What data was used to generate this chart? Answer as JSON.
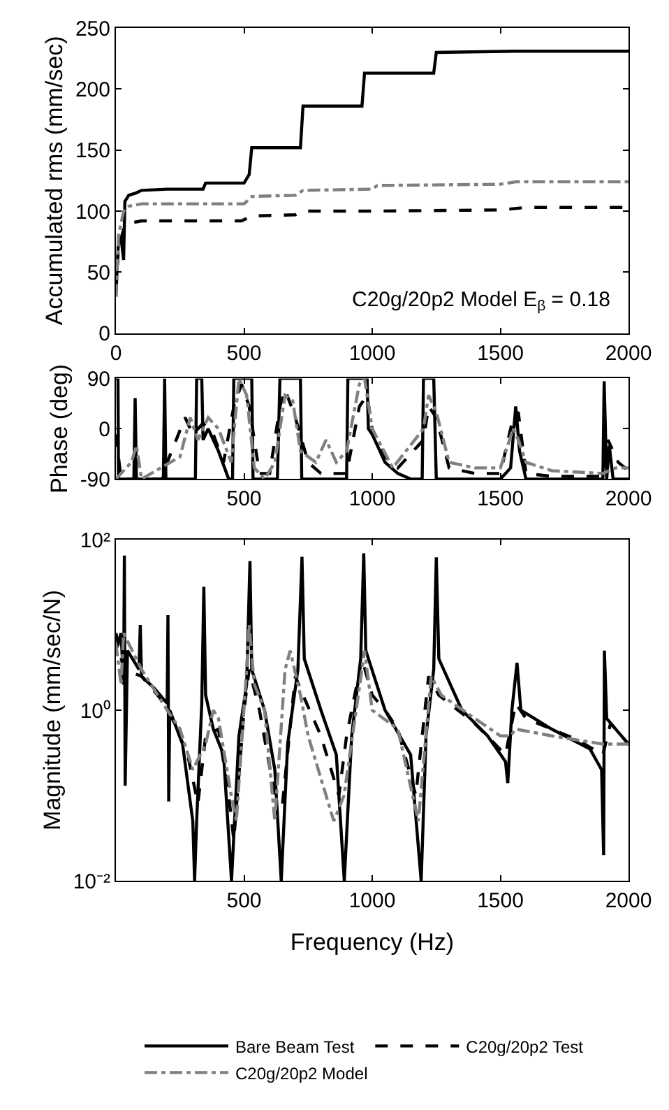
{
  "chart_data": [
    {
      "type": "line",
      "ylabel": "Accumulated rms (mm/sec)",
      "xlim": [
        0,
        2000
      ],
      "xticks": [
        0,
        500,
        1000,
        1500,
        2000
      ],
      "ylim": [
        0,
        250
      ],
      "yticks": [
        0,
        50,
        100,
        150,
        200,
        250
      ],
      "legend": false,
      "annotations": [
        "C20g/20p2 Model E$_{β}$ = 0.18"
      ],
      "series": [
        {
          "color": "#000000",
          "line_style": "solid",
          "x": [
            0,
            5,
            10,
            20,
            30,
            35,
            50,
            80,
            100,
            200,
            340,
            350,
            500,
            520,
            530,
            720,
            730,
            960,
            970,
            1240,
            1250,
            1560,
            2000
          ],
          "values": [
            30,
            55,
            75,
            78,
            60,
            108,
            113,
            115,
            117,
            118,
            118,
            123,
            123,
            130,
            152,
            152,
            186,
            186,
            213,
            213,
            230,
            231,
            231
          ]
        },
        {
          "color": "#000000",
          "line_style": "dashed",
          "x": [
            0,
            10,
            30,
            50,
            100,
            490,
            530,
            700,
            730,
            1000,
            1500,
            1600,
            2000
          ],
          "values": [
            35,
            70,
            85,
            90,
            92,
            92,
            96,
            97,
            100,
            100,
            101,
            103,
            103
          ]
        },
        {
          "color": "#808080",
          "line_style": "dashdot",
          "x": [
            0,
            10,
            30,
            50,
            100,
            500,
            530,
            700,
            730,
            1000,
            1020,
            1500,
            1560,
            2000
          ],
          "values": [
            30,
            80,
            100,
            104,
            106,
            106,
            112,
            113,
            117,
            118,
            121,
            122,
            124,
            124
          ]
        }
      ]
    },
    {
      "type": "line",
      "ylabel": "Phase (deg)",
      "xlim": [
        0,
        2000
      ],
      "xticks": [
        500,
        1000,
        1500,
        2000
      ],
      "ylim": [
        -90,
        90
      ],
      "yticks": [
        -90,
        0,
        90
      ],
      "legend": false,
      "series": [
        {
          "color": "#000000",
          "line_style": "solid",
          "x": [
            0,
            8,
            10,
            70,
            75,
            80,
            185,
            190,
            195,
            310,
            315,
            335,
            340,
            360,
            400,
            440,
            455,
            460,
            530,
            535,
            630,
            640,
            720,
            725,
            900,
            905,
            980,
            985,
            1000,
            1050,
            1100,
            1150,
            1195,
            1200,
            1240,
            1250,
            1500,
            1540,
            1560,
            1575,
            1600,
            1900,
            1905,
            1915,
            1925,
            1940,
            2000
          ],
          "values": [
            90,
            90,
            -90,
            -90,
            55,
            -90,
            -90,
            90,
            -90,
            -90,
            90,
            90,
            -20,
            0,
            -40,
            -90,
            -90,
            90,
            90,
            -90,
            -90,
            90,
            90,
            -90,
            -90,
            90,
            90,
            0,
            -10,
            -60,
            -80,
            -90,
            -90,
            90,
            90,
            -90,
            -90,
            -70,
            40,
            -40,
            -90,
            -90,
            85,
            -90,
            -30,
            -90,
            -90
          ]
        },
        {
          "color": "#000000",
          "line_style": "dashed",
          "x": [
            0,
            20,
            180,
            200,
            270,
            300,
            340,
            380,
            420,
            460,
            490,
            520,
            560,
            600,
            640,
            660,
            700,
            750,
            800,
            900,
            950,
            980,
            1000,
            1050,
            1100,
            1200,
            1220,
            1250,
            1300,
            1400,
            1500,
            1550,
            1570,
            1600,
            1700,
            1900,
            1920,
            1960,
            2000
          ],
          "values": [
            -10,
            -90,
            -90,
            -60,
            20,
            -10,
            10,
            -10,
            -60,
            40,
            80,
            40,
            -80,
            -80,
            40,
            70,
            20,
            -60,
            -80,
            -80,
            40,
            60,
            0,
            -50,
            -70,
            -20,
            40,
            20,
            -70,
            -80,
            -80,
            20,
            30,
            -80,
            -85,
            -85,
            -20,
            -60,
            -75
          ]
        },
        {
          "color": "#808080",
          "line_style": "dashdot",
          "x": [
            0,
            60,
            80,
            100,
            250,
            290,
            320,
            360,
            400,
            450,
            480,
            510,
            540,
            580,
            620,
            660,
            690,
            720,
            780,
            820,
            860,
            900,
            950,
            970,
            1000,
            1080,
            1200,
            1220,
            1250,
            1300,
            1400,
            1500,
            1550,
            1570,
            1600,
            1700,
            1900,
            1950,
            2000
          ],
          "values": [
            -90,
            -60,
            -30,
            -90,
            -50,
            20,
            -20,
            20,
            0,
            -60,
            90,
            60,
            -70,
            -90,
            -60,
            60,
            50,
            -40,
            -60,
            -20,
            -60,
            -40,
            80,
            90,
            0,
            -70,
            0,
            60,
            30,
            -60,
            -70,
            -70,
            0,
            -20,
            -60,
            -75,
            -80,
            -70,
            -70
          ]
        }
      ]
    },
    {
      "type": "line",
      "xlabel": "Frequency (Hz)",
      "ylabel": "Magnitude (mm/sec/N)",
      "log": "y",
      "xlim": [
        0,
        2000
      ],
      "xticks": [
        500,
        1000,
        1500,
        2000
      ],
      "ylim": [
        0.01,
        100
      ],
      "yticks": [
        {
          "value": 0.01,
          "label": "10⁻²"
        },
        {
          "value": 1,
          "label": "10⁰"
        },
        {
          "value": 100,
          "label": "10²"
        }
      ],
      "legend": "bottom",
      "series": [
        {
          "name": "Bare Beam Test",
          "color": "#000000",
          "line_style": "solid",
          "x": [
            0,
            20,
            30,
            33,
            36,
            45,
            90,
            95,
            100,
            150,
            200,
            203,
            206,
            210,
            260,
            300,
            307,
            315,
            335,
            343,
            350,
            380,
            420,
            451,
            480,
            510,
            523,
            530,
            580,
            620,
            645,
            670,
            710,
            726,
            735,
            800,
            860,
            891,
            920,
            955,
            967,
            975,
            1050,
            1150,
            1191,
            1210,
            1240,
            1250,
            1260,
            1350,
            1450,
            1520,
            1529,
            1545,
            1565,
            1580,
            1700,
            1850,
            1895,
            1903,
            1906,
            1915,
            1950,
            2000
          ],
          "values": [
            5,
            8,
            2,
            65,
            0.13,
            5,
            3,
            10,
            2.5,
            1.8,
            1.2,
            13,
            0.085,
            1,
            0.4,
            0.05,
            0.01,
            0.05,
            1.2,
            28,
            1.5,
            0.6,
            0.3,
            0.01,
            0.5,
            2,
            56,
            3,
            1,
            0.2,
            0.01,
            0.4,
            3,
            63,
            4,
            1,
            0.3,
            0.01,
            0.5,
            4,
            69,
            5,
            1,
            0.3,
            0.01,
            0.5,
            3,
            62,
            4,
            1,
            0.5,
            0.25,
            0.14,
            1,
            3.6,
            1,
            0.6,
            0.35,
            0.2,
            0.02,
            5,
            0.8,
            0.6,
            0.4
          ]
        },
        {
          "name": "C20g/20p2 Test",
          "color": "#000000",
          "line_style": "dashed",
          "x": [
            0,
            30,
            100,
            200,
            280,
            320,
            350,
            400,
            440,
            460,
            500,
            520,
            560,
            620,
            650,
            700,
            730,
            800,
            870,
            900,
            960,
            1000,
            1050,
            1100,
            1170,
            1220,
            1260,
            1400,
            1520,
            1560,
            1600,
            1800,
            1900,
            1930,
            2000
          ],
          "values": [
            8,
            3,
            2.5,
            1.1,
            0.3,
            0.08,
            0.5,
            0.6,
            0.1,
            0.03,
            1,
            3,
            1,
            0.1,
            0.08,
            2.5,
            1.5,
            0.5,
            0.1,
            0.5,
            4,
            1.5,
            1,
            0.6,
            0.1,
            2.5,
            1.5,
            0.7,
            0.3,
            1.2,
            0.8,
            0.45,
            0.3,
            0.7,
            0.4
          ]
        },
        {
          "name": "C20g/20p2 Model",
          "color": "#808080",
          "line_style": "dashdot",
          "x": [
            0,
            20,
            30,
            100,
            200,
            250,
            300,
            350,
            380,
            400,
            450,
            470,
            510,
            520,
            540,
            580,
            620,
            660,
            680,
            720,
            750,
            850,
            890,
            960,
            970,
            1000,
            1100,
            1180,
            1230,
            1270,
            1400,
            1500,
            1540,
            1560,
            1700,
            1900,
            2000
          ],
          "values": [
            6,
            2,
            8,
            3,
            1,
            0.6,
            0.2,
            0.4,
            1,
            0.8,
            0.1,
            0.05,
            3,
            10,
            2,
            1,
            0.05,
            3,
            5,
            1.5,
            0.5,
            0.05,
            0.1,
            3,
            5,
            1,
            0.6,
            0.05,
            2.5,
            1.5,
            0.8,
            0.5,
            0.5,
            0.6,
            0.5,
            0.4,
            0.4
          ]
        }
      ]
    }
  ]
}
